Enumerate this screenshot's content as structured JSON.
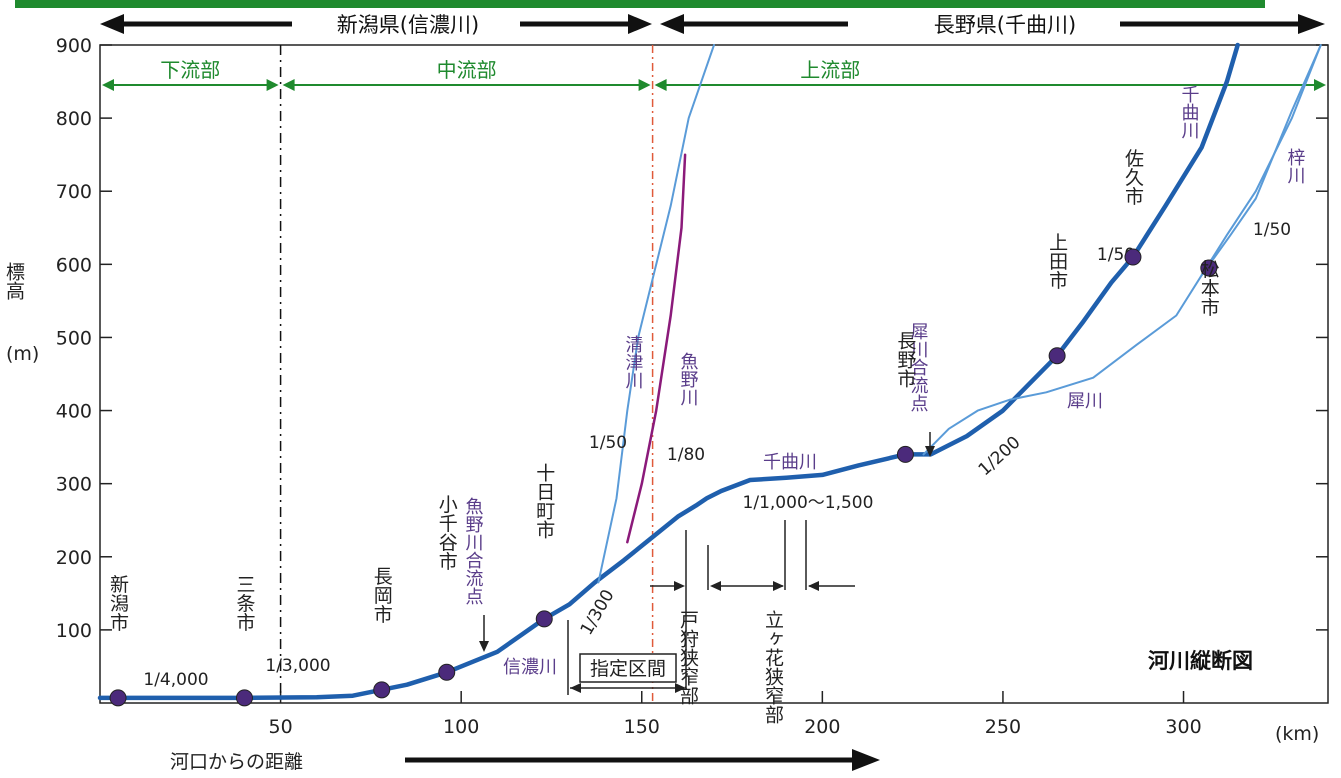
{
  "chart_data": {
    "type": "line",
    "title": "河川縦断図",
    "xlabel": "河口からの距離",
    "xunit": "(km)",
    "ylabel": "標高",
    "yunit": "(m)",
    "xlim": [
      0,
      340
    ],
    "ylim": [
      0,
      900
    ],
    "x_ticks": [
      50,
      100,
      150,
      200,
      250,
      300
    ],
    "y_ticks": [
      100,
      200,
      300,
      400,
      500,
      600,
      700,
      800,
      900
    ],
    "prefectures": [
      {
        "label": "新潟県(信濃川)",
        "x_range": [
          0,
          153
        ]
      },
      {
        "label": "長野県(千曲川)",
        "x_range": [
          153,
          340
        ]
      }
    ],
    "zones": [
      {
        "label": "下流部",
        "x_range": [
          0,
          50
        ]
      },
      {
        "label": "中流部",
        "x_range": [
          50,
          153
        ]
      },
      {
        "label": "上流部",
        "x_range": [
          153,
          340
        ]
      }
    ],
    "series": [
      {
        "name": "信濃川",
        "style": "main",
        "points": [
          [
            0,
            7
          ],
          [
            40,
            7
          ],
          [
            60,
            8
          ],
          [
            70,
            10
          ],
          [
            78,
            18
          ],
          [
            85,
            25
          ],
          [
            96,
            42
          ],
          [
            110,
            70
          ],
          [
            123,
            115
          ],
          [
            130,
            135
          ],
          [
            137,
            165
          ],
          [
            145,
            195
          ],
          [
            150,
            215
          ],
          [
            155,
            235
          ],
          [
            160,
            255
          ],
          [
            165,
            270
          ],
          [
            168,
            280
          ],
          [
            172,
            290
          ],
          [
            180,
            305
          ],
          [
            190,
            308
          ],
          [
            200,
            312
          ],
          [
            210,
            325
          ],
          [
            223,
            340
          ]
        ]
      },
      {
        "name": "千曲川",
        "style": "main",
        "points": [
          [
            223,
            340
          ],
          [
            230,
            340
          ],
          [
            240,
            365
          ],
          [
            250,
            400
          ],
          [
            258,
            440
          ],
          [
            265,
            475
          ],
          [
            272,
            520
          ],
          [
            280,
            575
          ],
          [
            286,
            610
          ],
          [
            295,
            680
          ],
          [
            305,
            760
          ],
          [
            312,
            850
          ],
          [
            315,
            920
          ]
        ]
      },
      {
        "name": "清津川",
        "style": "tributary",
        "points": [
          [
            138,
            165
          ],
          [
            143,
            280
          ],
          [
            146,
            400
          ],
          [
            149,
            500
          ],
          [
            153,
            580
          ],
          [
            158,
            680
          ],
          [
            163,
            800
          ],
          [
            170,
            930
          ]
        ]
      },
      {
        "name": "魚野川",
        "style": "tributary2",
        "points": [
          [
            146,
            220
          ],
          [
            150,
            300
          ],
          [
            154,
            400
          ],
          [
            158,
            530
          ],
          [
            161,
            650
          ],
          [
            162,
            750
          ]
        ]
      },
      {
        "name": "犀川",
        "style": "tributary",
        "points": [
          [
            228,
            340
          ],
          [
            235,
            375
          ],
          [
            243,
            400
          ],
          [
            252,
            415
          ],
          [
            262,
            425
          ],
          [
            275,
            445
          ],
          [
            287,
            490
          ],
          [
            298,
            530
          ],
          [
            305,
            585
          ],
          [
            313,
            640
          ],
          [
            320,
            690
          ],
          [
            330,
            810
          ],
          [
            338,
            910
          ]
        ]
      },
      {
        "name": "梓川",
        "style": "tributary",
        "points": []
      }
    ],
    "cities": [
      {
        "name": "新潟市",
        "x": 5,
        "y": 7
      },
      {
        "name": "三条市",
        "x": 40,
        "y": 7
      },
      {
        "name": "長岡市",
        "x": 78,
        "y": 18
      },
      {
        "name": "小千谷市",
        "x": 96,
        "y": 42
      },
      {
        "name": "十日町市",
        "x": 123,
        "y": 115
      },
      {
        "name": "長野市",
        "x": 223,
        "y": 340
      },
      {
        "name": "上田市",
        "x": 265,
        "y": 475
      },
      {
        "name": "佐久市",
        "x": 286,
        "y": 610
      },
      {
        "name": "松本市",
        "x": 307,
        "y": 595
      }
    ],
    "confluences": [
      "魚野川合流点",
      "犀川合流点"
    ],
    "gorges": [
      "戸狩狭窄部",
      "立ヶ花狭窄部"
    ],
    "designated_section": "指定区間",
    "slopes": [
      "1/4,000",
      "1/3,000",
      "1/300",
      "1/50",
      "1/80",
      "1/1,000～1,500",
      "1/200",
      "1/50",
      "1/50"
    ],
    "colors": {
      "main": "#1f5fad",
      "tributary": "#5a9bd8",
      "tributary2": "#8b1a7a",
      "zone": "#1f8a2e",
      "divider": "#e05a3a",
      "city": "#4b2a7b",
      "label": "#5a3d8a"
    }
  }
}
